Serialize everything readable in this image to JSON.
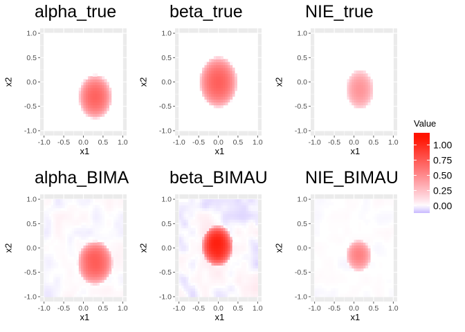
{
  "chart_data": [
    {
      "type": "heatmap",
      "title": "alpha_true",
      "xlabel": "x1",
      "ylabel": "x2",
      "xlim": [
        -1.0,
        1.0
      ],
      "ylim": [
        -1.0,
        1.0
      ],
      "xticks": [
        "-1.0",
        "-0.5",
        "0.0",
        "0.5",
        "1.0"
      ],
      "yticks": [
        "-1.0",
        "-0.5",
        "0.0",
        "0.5",
        "1.0"
      ],
      "blob": {
        "cx": 0.3,
        "cy": -0.3,
        "rx": 0.42,
        "ry": 0.45,
        "peak": 0.7
      },
      "noise": 0
    },
    {
      "type": "heatmap",
      "title": "beta_true",
      "xlabel": "x1",
      "ylabel": "x2",
      "xlim": [
        -1.0,
        1.0
      ],
      "ylim": [
        -1.0,
        1.0
      ],
      "xticks": [
        "-1.0",
        "-0.5",
        "0.0",
        "0.5",
        "1.0"
      ],
      "yticks": [
        "-1.0",
        "-0.5",
        "0.0",
        "0.5",
        "1.0"
      ],
      "blob": {
        "cx": 0.0,
        "cy": 0.0,
        "rx": 0.48,
        "ry": 0.52,
        "peak": 0.72
      },
      "noise": 0
    },
    {
      "type": "heatmap",
      "title": "NIE_true",
      "xlabel": "x1",
      "ylabel": "x2",
      "xlim": [
        -1.0,
        1.0
      ],
      "ylim": [
        -1.0,
        1.0
      ],
      "xticks": [
        "-1.0",
        "-0.5",
        "0.0",
        "0.5",
        "1.0"
      ],
      "yticks": [
        "-1.0",
        "-0.5",
        "0.0",
        "0.5",
        "1.0"
      ],
      "blob": {
        "cx": 0.15,
        "cy": -0.15,
        "rx": 0.35,
        "ry": 0.4,
        "peak": 0.45
      },
      "noise": 0
    },
    {
      "type": "heatmap",
      "title": "alpha_BIMA",
      "xlabel": "x1",
      "ylabel": "x2",
      "xlim": [
        -1.0,
        1.0
      ],
      "ylim": [
        -1.0,
        1.0
      ],
      "xticks": [
        "-1.0",
        "-0.5",
        "0.0",
        "0.5",
        "1.0"
      ],
      "yticks": [
        "-1.0",
        "-0.5",
        "0.0",
        "0.5",
        "1.0"
      ],
      "blob": {
        "cx": 0.3,
        "cy": -0.3,
        "rx": 0.45,
        "ry": 0.45,
        "peak": 0.75
      },
      "noise": 0.05
    },
    {
      "type": "heatmap",
      "title": "beta_BIMAU",
      "xlabel": "x1",
      "ylabel": "x2",
      "xlim": [
        -1.0,
        1.0
      ],
      "ylim": [
        -1.0,
        1.0
      ],
      "xticks": [
        "-1.0",
        "-0.5",
        "0.0",
        "0.5",
        "1.0"
      ],
      "yticks": [
        "-1.0",
        "-0.5",
        "0.0",
        "0.5",
        "1.0"
      ],
      "blob": {
        "cx": -0.02,
        "cy": 0.05,
        "rx": 0.4,
        "ry": 0.42,
        "peak": 1.05
      },
      "noise": 0.09
    },
    {
      "type": "heatmap",
      "title": "NIE_BIMAU",
      "xlabel": "x1",
      "ylabel": "x2",
      "xlim": [
        -1.0,
        1.0
      ],
      "ylim": [
        -1.0,
        1.0
      ],
      "xticks": [
        "-1.0",
        "-0.5",
        "0.0",
        "0.5",
        "1.0"
      ],
      "yticks": [
        "-1.0",
        "-0.5",
        "0.0",
        "0.5",
        "1.0"
      ],
      "blob": {
        "cx": 0.12,
        "cy": -0.15,
        "rx": 0.32,
        "ry": 0.32,
        "peak": 0.55
      },
      "noise": 0.02
    }
  ],
  "legend": {
    "title": "Value",
    "ticks": [
      "1.00",
      "0.75",
      "0.50",
      "0.25",
      "0.00"
    ],
    "tick_values": [
      1.0,
      0.75,
      0.5,
      0.25,
      0.0
    ],
    "min": -0.12,
    "max": 1.2,
    "colors": {
      "high": "#ff0000",
      "mid": "#ffffff",
      "low": "#c8b8ff"
    }
  },
  "colors": {
    "panel_bg": "#ebebeb",
    "grid": "#ffffff",
    "tick_text": "#4d4d4d"
  }
}
